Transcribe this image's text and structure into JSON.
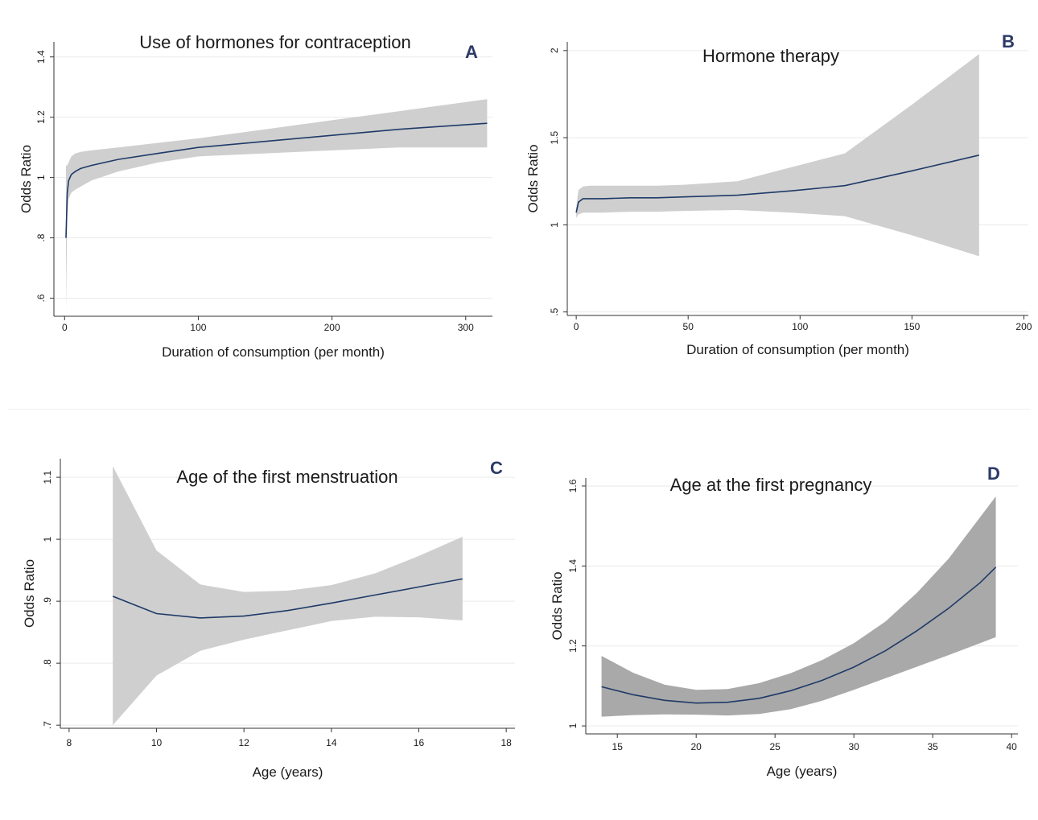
{
  "colors": {
    "line": "#1f3a68",
    "band": "#cfcfcf",
    "band_dark": "#a9a9a9",
    "grid": "#eaeaea",
    "axis": "#333333",
    "letter": "#2b3a67"
  },
  "chart_data": [
    {
      "id": "A",
      "letter": "A",
      "type": "line",
      "title": "Use of hormones for contraception",
      "xlabel": "Duration of consumption (per month)",
      "ylabel": "Odds Ratio",
      "xlim": [
        -8,
        320
      ],
      "ylim": [
        0.54,
        1.45
      ],
      "xticks": [
        {
          "v": 0,
          "label": "0"
        },
        {
          "v": 100,
          "label": "100"
        },
        {
          "v": 200,
          "label": "200"
        },
        {
          "v": 300,
          "label": "300"
        }
      ],
      "yticks": [
        {
          "v": 0.6,
          "label": ".6"
        },
        {
          "v": 0.8,
          "label": ".8"
        },
        {
          "v": 1.0,
          "label": "1"
        },
        {
          "v": 1.2,
          "label": "1.2"
        },
        {
          "v": 1.4,
          "label": "1.4"
        }
      ],
      "grid": true,
      "series": [
        {
          "x": [
            1,
            2,
            3,
            5,
            8,
            12,
            20,
            40,
            70,
            100,
            150,
            200,
            250,
            316
          ],
          "y": [
            0.8,
            0.95,
            0.99,
            1.01,
            1.02,
            1.03,
            1.04,
            1.06,
            1.08,
            1.1,
            1.12,
            1.14,
            1.16,
            1.18
          ],
          "lower": [
            0.56,
            0.87,
            0.93,
            0.95,
            0.96,
            0.97,
            0.99,
            1.02,
            1.05,
            1.07,
            1.08,
            1.09,
            1.1,
            1.1
          ],
          "upper": [
            1.04,
            1.04,
            1.05,
            1.07,
            1.08,
            1.085,
            1.09,
            1.1,
            1.115,
            1.13,
            1.16,
            1.19,
            1.22,
            1.26
          ]
        }
      ]
    },
    {
      "id": "B",
      "letter": "B",
      "type": "line",
      "title": "Hormone therapy",
      "xlabel": "Duration of consumption (per month)",
      "ylabel": "Odds Ratio",
      "xlim": [
        -4,
        202
      ],
      "ylim": [
        0.48,
        2.05
      ],
      "xticks": [
        {
          "v": 0,
          "label": "0"
        },
        {
          "v": 50,
          "label": "50"
        },
        {
          "v": 100,
          "label": "100"
        },
        {
          "v": 150,
          "label": "150"
        },
        {
          "v": 200,
          "label": "200"
        }
      ],
      "yticks": [
        {
          "v": 0.5,
          "label": ".5"
        },
        {
          "v": 1.0,
          "label": "1"
        },
        {
          "v": 1.5,
          "label": "1.5"
        },
        {
          "v": 2.0,
          "label": "2"
        }
      ],
      "grid": true,
      "series": [
        {
          "x": [
            0,
            1,
            3,
            6,
            12,
            24,
            36,
            48,
            72,
            96,
            120,
            150,
            180
          ],
          "y": [
            1.07,
            1.13,
            1.15,
            1.15,
            1.15,
            1.155,
            1.155,
            1.16,
            1.17,
            1.195,
            1.225,
            1.31,
            1.4
          ],
          "lower": [
            1.04,
            1.06,
            1.07,
            1.07,
            1.07,
            1.075,
            1.075,
            1.08,
            1.085,
            1.07,
            1.05,
            0.94,
            0.82
          ],
          "upper": [
            1.1,
            1.2,
            1.22,
            1.225,
            1.225,
            1.225,
            1.225,
            1.23,
            1.25,
            1.33,
            1.41,
            1.69,
            1.98
          ]
        }
      ]
    },
    {
      "id": "C",
      "letter": "C",
      "type": "line",
      "title": "Age of the first menstruation",
      "xlabel": "Age (years)",
      "ylabel": "Odds Ratio",
      "xlim": [
        7.8,
        18.2
      ],
      "ylim": [
        0.695,
        1.13
      ],
      "xticks": [
        {
          "v": 8,
          "label": "8"
        },
        {
          "v": 10,
          "label": "10"
        },
        {
          "v": 12,
          "label": "12"
        },
        {
          "v": 14,
          "label": "14"
        },
        {
          "v": 16,
          "label": "16"
        },
        {
          "v": 18,
          "label": "18"
        }
      ],
      "yticks": [
        {
          "v": 0.7,
          "label": ".7"
        },
        {
          "v": 0.8,
          "label": ".8"
        },
        {
          "v": 0.9,
          "label": ".9"
        },
        {
          "v": 1.0,
          "label": "1"
        },
        {
          "v": 1.1,
          "label": "1.1"
        }
      ],
      "grid": true,
      "series": [
        {
          "x": [
            9,
            10,
            11,
            12,
            13,
            14,
            15,
            16,
            17
          ],
          "y": [
            0.908,
            0.88,
            0.873,
            0.876,
            0.885,
            0.897,
            0.91,
            0.923,
            0.936
          ],
          "lower": [
            0.7,
            0.78,
            0.82,
            0.838,
            0.853,
            0.868,
            0.875,
            0.874,
            0.869
          ],
          "upper": [
            1.118,
            0.982,
            0.927,
            0.915,
            0.917,
            0.926,
            0.945,
            0.973,
            1.004
          ]
        }
      ]
    },
    {
      "id": "D",
      "letter": "D",
      "type": "line",
      "title": "Age at the first pregnancy",
      "xlabel": "Age (years)",
      "ylabel": "Odds Ratio",
      "xlim": [
        13,
        40.4
      ],
      "ylim": [
        0.98,
        1.62
      ],
      "xticks": [
        {
          "v": 15,
          "label": "15"
        },
        {
          "v": 20,
          "label": "20"
        },
        {
          "v": 25,
          "label": "25"
        },
        {
          "v": 30,
          "label": "30"
        },
        {
          "v": 35,
          "label": "35"
        },
        {
          "v": 40,
          "label": "40"
        }
      ],
      "yticks": [
        {
          "v": 1.0,
          "label": "1"
        },
        {
          "v": 1.2,
          "label": "1.2"
        },
        {
          "v": 1.4,
          "label": "1.4"
        },
        {
          "v": 1.6,
          "label": "1.6"
        }
      ],
      "grid": true,
      "band_style": "dark",
      "series": [
        {
          "x": [
            14,
            16,
            18,
            20,
            22,
            24,
            26,
            28,
            30,
            32,
            34,
            36,
            38,
            39
          ],
          "y": [
            1.098,
            1.078,
            1.064,
            1.057,
            1.059,
            1.069,
            1.088,
            1.114,
            1.147,
            1.188,
            1.238,
            1.294,
            1.358,
            1.397
          ],
          "lower": [
            1.023,
            1.027,
            1.029,
            1.028,
            1.026,
            1.03,
            1.042,
            1.063,
            1.09,
            1.119,
            1.148,
            1.177,
            1.207,
            1.222
          ],
          "upper": [
            1.175,
            1.133,
            1.103,
            1.09,
            1.092,
            1.107,
            1.132,
            1.165,
            1.207,
            1.261,
            1.333,
            1.418,
            1.522,
            1.574
          ]
        }
      ]
    }
  ]
}
